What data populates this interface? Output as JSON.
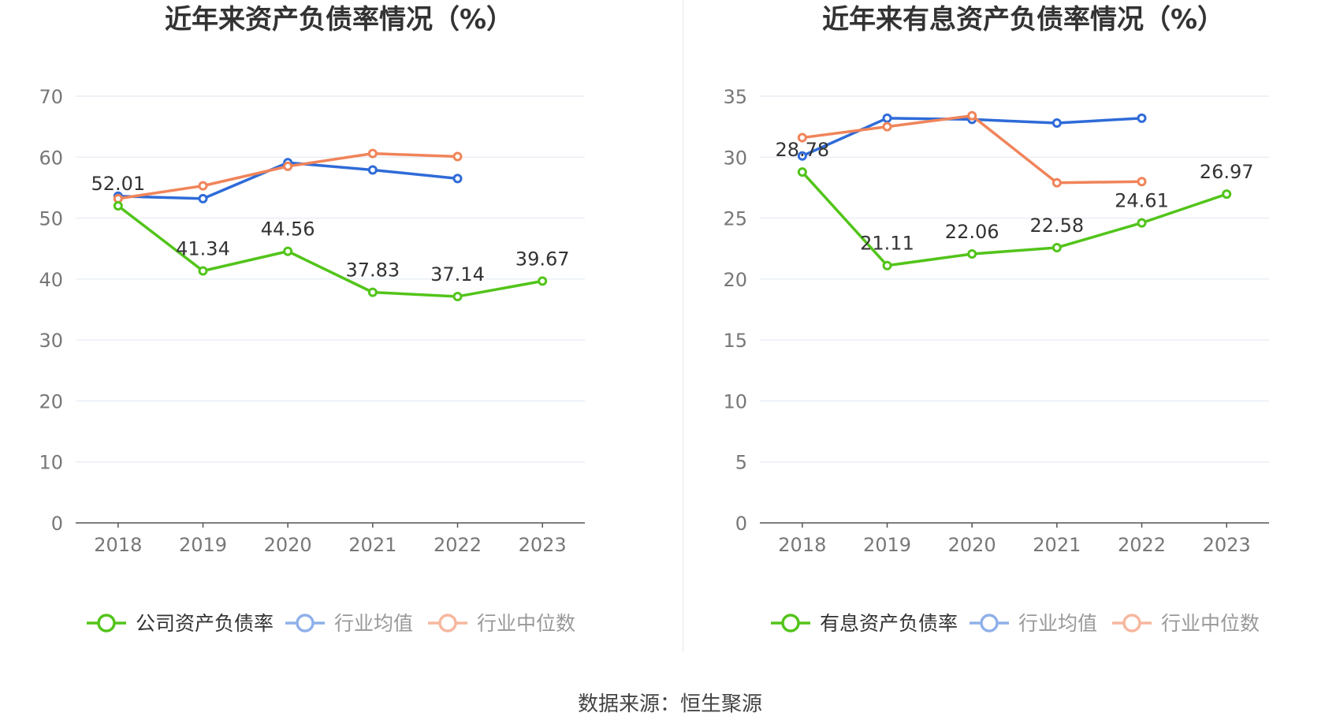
{
  "charts": [
    {
      "title": "近年来资产负债率情况（%）",
      "chart_data": {
        "type": "line",
        "categories": [
          "2018",
          "2019",
          "2020",
          "2021",
          "2022",
          "2023"
        ],
        "ylim": [
          0,
          70
        ],
        "yticks": [
          0,
          10,
          20,
          30,
          40,
          50,
          60,
          70
        ],
        "grid": true,
        "legend_position": "bottom",
        "series": [
          {
            "name": "公司资产负债率",
            "color": "#52c41a",
            "values": [
              52.01,
              41.34,
              44.56,
              37.83,
              37.14,
              39.67
            ],
            "labels": [
              "52.01",
              "41.34",
              "44.56",
              "37.83",
              "37.14",
              "39.67"
            ]
          },
          {
            "name": "行业均值",
            "color": "#2f6bd8",
            "values": [
              53.6,
              53.2,
              59.1,
              57.9,
              56.5,
              null
            ]
          },
          {
            "name": "行业中位数",
            "color": "#f0845a",
            "values": [
              53.2,
              55.3,
              58.5,
              60.6,
              60.1,
              null
            ]
          }
        ]
      }
    },
    {
      "title": "近年来有息资产负债率情况（%）",
      "chart_data": {
        "type": "line",
        "categories": [
          "2018",
          "2019",
          "2020",
          "2021",
          "2022",
          "2023"
        ],
        "ylim": [
          0,
          35
        ],
        "yticks": [
          0,
          5,
          10,
          15,
          20,
          25,
          30,
          35
        ],
        "grid": true,
        "legend_position": "bottom",
        "series": [
          {
            "name": "有息资产负债率",
            "color": "#52c41a",
            "values": [
              28.78,
              21.11,
              22.06,
              22.58,
              24.61,
              26.97
            ],
            "labels": [
              "28.78",
              "21.11",
              "22.06",
              "22.58",
              "24.61",
              "26.97"
            ]
          },
          {
            "name": "行业均值",
            "color": "#2f6bd8",
            "values": [
              30.1,
              33.2,
              33.1,
              32.8,
              33.2,
              null
            ]
          },
          {
            "name": "行业中位数",
            "color": "#f0845a",
            "values": [
              31.6,
              32.5,
              33.4,
              27.9,
              28.0,
              null
            ]
          }
        ]
      }
    }
  ],
  "source": "数据来源：恒生聚源"
}
